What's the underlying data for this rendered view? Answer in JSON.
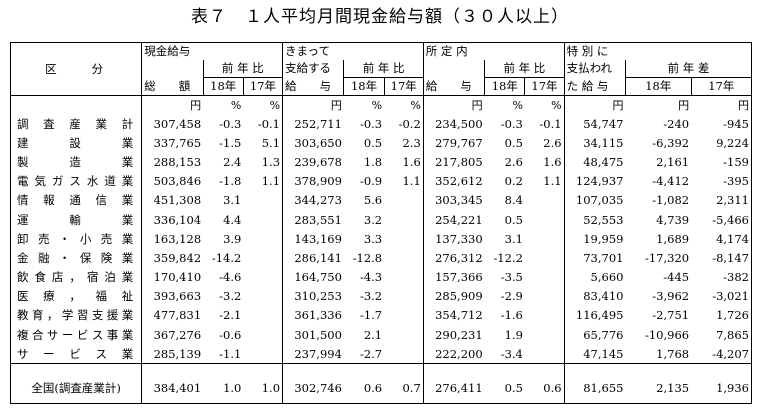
{
  "title": "表７　１人平均月間現金給与額（３０人以上）",
  "headers": {
    "category": "区　　分",
    "g1_top": "現金給与",
    "g1_bottom": "総　　額",
    "g2_top1": "きまって",
    "g2_top2": "支給する",
    "g2_bottom": "給　　与",
    "g3_top": "所 定 内",
    "g3_bottom": "給　　与",
    "g4_top1": "特 別 に",
    "g4_top2": "支払われ",
    "g4_bottom": "た 給 与",
    "yoy": "前 年 比",
    "yoy_diff": "前 年 差",
    "y18": "18年",
    "y17": "17年"
  },
  "units": [
    "円",
    "%",
    "%",
    "円",
    "%",
    "%",
    "円",
    "%",
    "%",
    "円",
    "円",
    "円"
  ],
  "rows": [
    {
      "label": "調査産業計",
      "v": [
        "307,458",
        "-0.3",
        "-0.1",
        "252,711",
        "-0.3",
        "-0.2",
        "234,500",
        "-0.3",
        "-0.1",
        "54,747",
        "-240",
        "-945"
      ]
    },
    {
      "label": "建設業",
      "v": [
        "337,765",
        "-1.5",
        "5.1",
        "303,650",
        "0.5",
        "2.3",
        "279,767",
        "0.5",
        "2.6",
        "34,115",
        "-6,392",
        "9,224"
      ]
    },
    {
      "label": "製造業",
      "v": [
        "288,153",
        "2.4",
        "1.3",
        "239,678",
        "1.8",
        "1.6",
        "217,805",
        "2.6",
        "1.6",
        "48,475",
        "2,161",
        "-159"
      ]
    },
    {
      "label": "電気ガス水道業",
      "v": [
        "503,846",
        "-1.8",
        "1.1",
        "378,909",
        "-0.9",
        "1.1",
        "352,612",
        "0.2",
        "1.1",
        "124,937",
        "-4,412",
        "-395"
      ]
    },
    {
      "label": "情報通信業",
      "v": [
        "451,308",
        "3.1",
        "",
        "344,273",
        "5.6",
        "",
        "303,345",
        "8.4",
        "",
        "107,035",
        "-1,082",
        "2,311"
      ]
    },
    {
      "label": "運輸業",
      "v": [
        "336,104",
        "4.4",
        "",
        "283,551",
        "3.2",
        "",
        "254,221",
        "0.5",
        "",
        "52,553",
        "4,739",
        "-5,466"
      ]
    },
    {
      "label": "卸売・小売業",
      "v": [
        "163,128",
        "3.9",
        "",
        "143,169",
        "3.3",
        "",
        "137,330",
        "3.1",
        "",
        "19,959",
        "1,689",
        "4,174"
      ]
    },
    {
      "label": "金融・保険業",
      "v": [
        "359,842",
        "-14.2",
        "",
        "286,141",
        "-12.8",
        "",
        "276,312",
        "-12.2",
        "",
        "73,701",
        "-17,320",
        "-8,147"
      ]
    },
    {
      "label": "飲食店，宿泊業",
      "v": [
        "170,410",
        "-4.6",
        "",
        "164,750",
        "-4.3",
        "",
        "157,366",
        "-3.5",
        "",
        "5,660",
        "-445",
        "-382"
      ]
    },
    {
      "label": "医療，福祉",
      "v": [
        "393,663",
        "-3.2",
        "",
        "310,253",
        "-3.2",
        "",
        "285,909",
        "-2.9",
        "",
        "83,410",
        "-3,962",
        "-3,021"
      ]
    },
    {
      "label": "教育，学習支援業",
      "v": [
        "477,831",
        "-2.1",
        "",
        "361,336",
        "-1.7",
        "",
        "354,712",
        "-1.6",
        "",
        "116,495",
        "-2,751",
        "1,726"
      ]
    },
    {
      "label": "複合サービス事業",
      "v": [
        "367,276",
        "-0.6",
        "",
        "301,500",
        "2.1",
        "",
        "290,231",
        "1.9",
        "",
        "65,776",
        "-10,966",
        "7,865"
      ]
    },
    {
      "label": "サービス業",
      "v": [
        "285,139",
        "-1.1",
        "",
        "237,994",
        "-2.7",
        "",
        "222,200",
        "-3.4",
        "",
        "47,145",
        "1,768",
        "-4,207"
      ]
    }
  ],
  "total": {
    "label": "全国(調査産業計)",
    "v": [
      "384,401",
      "1.0",
      "1.0",
      "302,746",
      "0.6",
      "0.7",
      "276,411",
      "0.5",
      "0.6",
      "81,655",
      "2,135",
      "1,936"
    ]
  }
}
